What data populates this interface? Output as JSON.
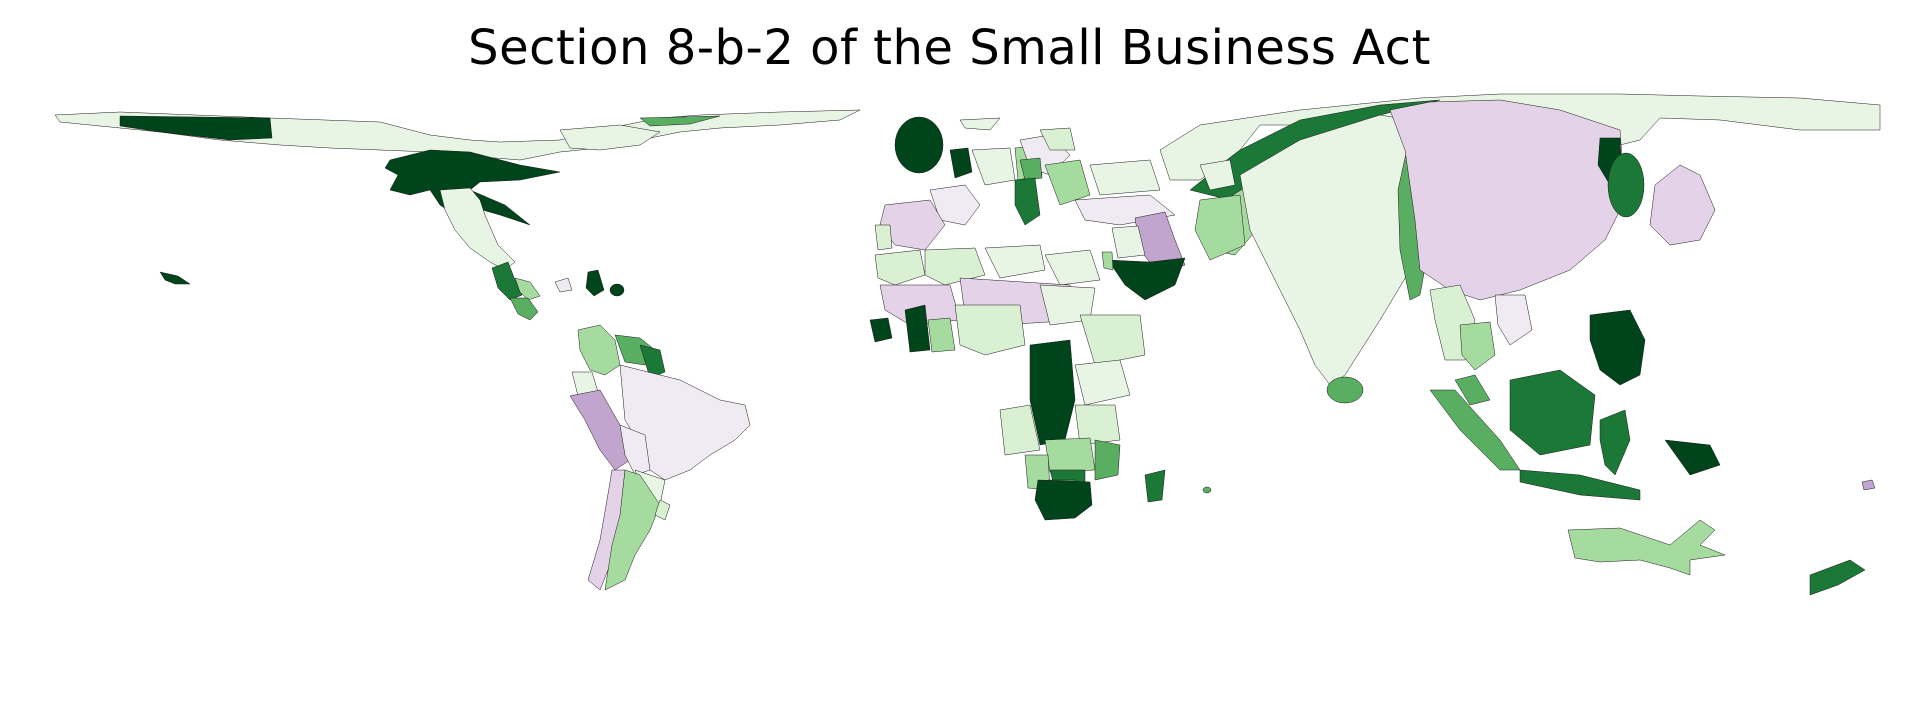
{
  "title": "Section 8-b-2 of the Small Business Act",
  "colormap": "PRGn",
  "palette": {
    "g5": "#00441b",
    "g4": "#1b7837",
    "g3": "#5aae61",
    "g2": "#a6dba0",
    "g1": "#d9f0d3",
    "g0": "#e8f5e4",
    "p0": "#f0ebf3",
    "p1": "#e4d2e8",
    "p2": "#c2a5cf"
  },
  "regions": [
    {
      "id": "alaska-west",
      "tone": "g5"
    },
    {
      "id": "north-america-arctic",
      "tone": "g0"
    },
    {
      "id": "canada-arctic-islands",
      "tone": "g0"
    },
    {
      "id": "canada-north-strip",
      "tone": "g3"
    },
    {
      "id": "usa-fan",
      "tone": "g5"
    },
    {
      "id": "mexico",
      "tone": "g0"
    },
    {
      "id": "guatemala",
      "tone": "g4"
    },
    {
      "id": "honduras",
      "tone": "g2"
    },
    {
      "id": "nicaragua",
      "tone": "g3"
    },
    {
      "id": "cuba",
      "tone": "p0"
    },
    {
      "id": "haiti",
      "tone": "g5"
    },
    {
      "id": "dominican-republic",
      "tone": "g5"
    },
    {
      "id": "hawaii",
      "tone": "g5"
    },
    {
      "id": "colombia",
      "tone": "g2"
    },
    {
      "id": "venezuela",
      "tone": "g3"
    },
    {
      "id": "guianas",
      "tone": "g4"
    },
    {
      "id": "ecuador",
      "tone": "g0"
    },
    {
      "id": "peru",
      "tone": "p2"
    },
    {
      "id": "bolivia",
      "tone": "p0"
    },
    {
      "id": "brazil",
      "tone": "p0"
    },
    {
      "id": "paraguay",
      "tone": "g0"
    },
    {
      "id": "chile",
      "tone": "p1"
    },
    {
      "id": "argentina",
      "tone": "g2"
    },
    {
      "id": "uruguay",
      "tone": "g1"
    },
    {
      "id": "uk",
      "tone": "g5"
    },
    {
      "id": "ireland",
      "tone": "g5"
    },
    {
      "id": "iceland",
      "tone": "g0"
    },
    {
      "id": "france",
      "tone": "p0"
    },
    {
      "id": "spain",
      "tone": "p1"
    },
    {
      "id": "portugal",
      "tone": "g1"
    },
    {
      "id": "germany",
      "tone": "g0"
    },
    {
      "id": "poland",
      "tone": "g2"
    },
    {
      "id": "scandinavia",
      "tone": "p0"
    },
    {
      "id": "finland",
      "tone": "g1"
    },
    {
      "id": "baltics",
      "tone": "g3"
    },
    {
      "id": "italy",
      "tone": "g4"
    },
    {
      "id": "balkans",
      "tone": "g2"
    },
    {
      "id": "ukraine",
      "tone": "g0"
    },
    {
      "id": "turkey",
      "tone": "p0"
    },
    {
      "id": "iran",
      "tone": "p2"
    },
    {
      "id": "iraq",
      "tone": "g0"
    },
    {
      "id": "saudi-arabia",
      "tone": "g5"
    },
    {
      "id": "israel",
      "tone": "g2"
    },
    {
      "id": "morocco",
      "tone": "g1"
    },
    {
      "id": "algeria",
      "tone": "g1"
    },
    {
      "id": "libya",
      "tone": "g0"
    },
    {
      "id": "egypt",
      "tone": "g0"
    },
    {
      "id": "sahel-west",
      "tone": "p1"
    },
    {
      "id": "sahel-east",
      "tone": "p1"
    },
    {
      "id": "senegal",
      "tone": "g5"
    },
    {
      "id": "guinea",
      "tone": "g5"
    },
    {
      "id": "ghana",
      "tone": "g2"
    },
    {
      "id": "nigeria",
      "tone": "g1"
    },
    {
      "id": "ethiopia",
      "tone": "g1"
    },
    {
      "id": "sudan",
      "tone": "g0"
    },
    {
      "id": "drc",
      "tone": "g5"
    },
    {
      "id": "kenya",
      "tone": "g0"
    },
    {
      "id": "tanzania",
      "tone": "g1"
    },
    {
      "id": "angola",
      "tone": "g1"
    },
    {
      "id": "zambia",
      "tone": "g2"
    },
    {
      "id": "mozambique",
      "tone": "g3"
    },
    {
      "id": "zimbabwe",
      "tone": "g4"
    },
    {
      "id": "namibia",
      "tone": "g2"
    },
    {
      "id": "botswana",
      "tone": "g3"
    },
    {
      "id": "south-africa",
      "tone": "g5"
    },
    {
      "id": "madagascar",
      "tone": "g4"
    },
    {
      "id": "mauritius",
      "tone": "g3"
    },
    {
      "id": "russia",
      "tone": "g0"
    },
    {
      "id": "kazakhstan-band",
      "tone": "g4"
    },
    {
      "id": "central-asia-band",
      "tone": "g2"
    },
    {
      "id": "pakistan",
      "tone": "g2"
    },
    {
      "id": "india",
      "tone": "g0"
    },
    {
      "id": "sri-lanka",
      "tone": "g3"
    },
    {
      "id": "bangladesh",
      "tone": "g3"
    },
    {
      "id": "china",
      "tone": "p1"
    },
    {
      "id": "mongolia",
      "tone": "g0"
    },
    {
      "id": "north-korea",
      "tone": "g5"
    },
    {
      "id": "south-korea",
      "tone": "g4"
    },
    {
      "id": "japan",
      "tone": "p1"
    },
    {
      "id": "myanmar",
      "tone": "g1"
    },
    {
      "id": "thailand",
      "tone": "g2"
    },
    {
      "id": "vietnam",
      "tone": "p0"
    },
    {
      "id": "philippines",
      "tone": "g5"
    },
    {
      "id": "malaysia-peninsula",
      "tone": "g3"
    },
    {
      "id": "borneo",
      "tone": "g4"
    },
    {
      "id": "sumatra",
      "tone": "g3"
    },
    {
      "id": "java",
      "tone": "g4"
    },
    {
      "id": "sulawesi",
      "tone": "g4"
    },
    {
      "id": "papua",
      "tone": "g5"
    },
    {
      "id": "australia",
      "tone": "g2"
    },
    {
      "id": "new-zealand",
      "tone": "g4"
    },
    {
      "id": "fiji",
      "tone": "p2"
    }
  ]
}
